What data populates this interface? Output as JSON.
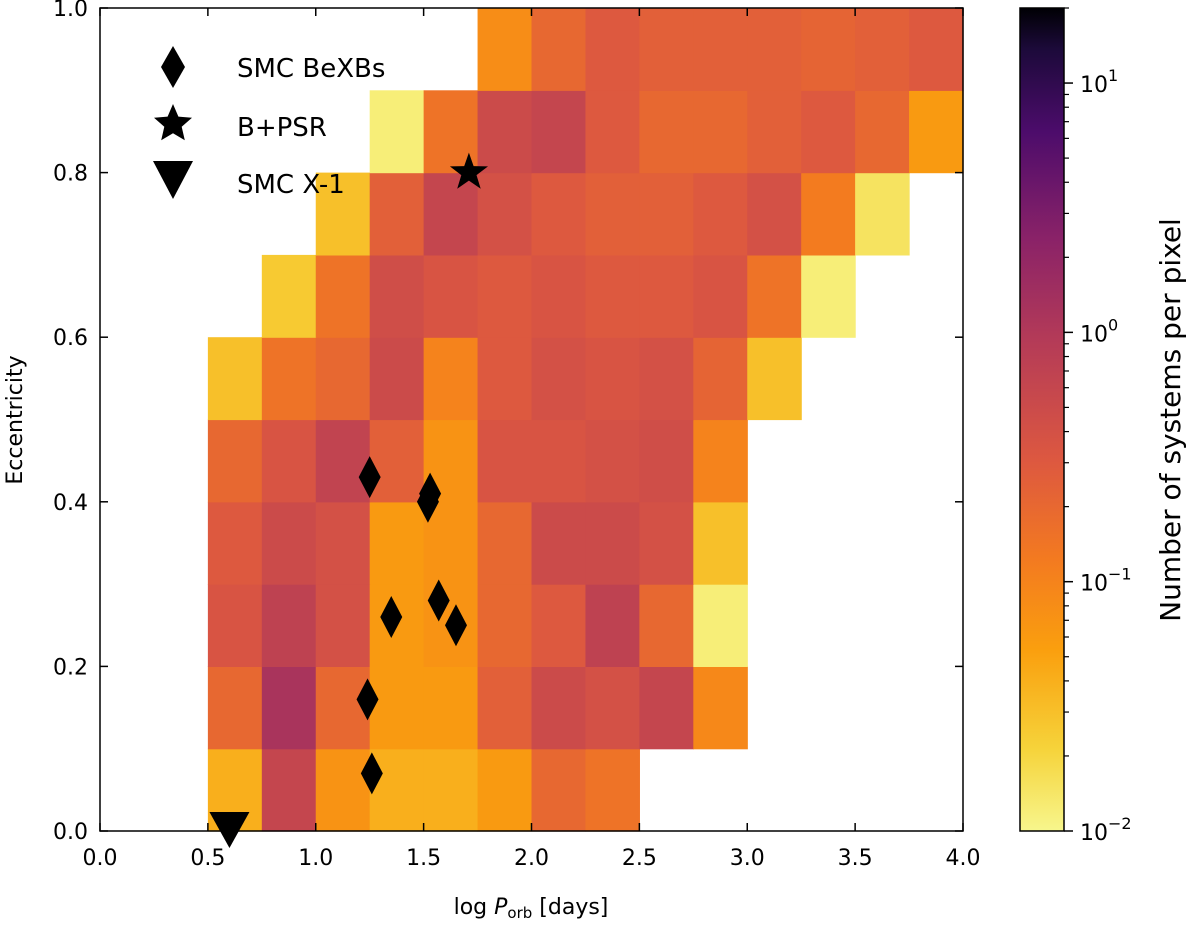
{
  "chart_data": {
    "type": "heatmap",
    "xlabel": {
      "prefix": "log ",
      "var": "P",
      "sub": "orb",
      "suffix": " [days]"
    },
    "ylabel": "Eccentricity",
    "xlim": [
      0.0,
      4.0
    ],
    "ylim": [
      0.0,
      1.0
    ],
    "xticks": [
      "0.0",
      "0.5",
      "1.0",
      "1.5",
      "2.0",
      "2.5",
      "3.0",
      "3.5",
      "4.0"
    ],
    "yticks": [
      "0.0",
      "0.2",
      "0.4",
      "0.6",
      "0.8",
      "1.0"
    ],
    "bin_width_x": 0.25,
    "bin_height_y": 0.0833,
    "x_bin_starts": [
      0.5,
      0.75,
      1.0,
      1.25,
      1.5,
      1.75,
      2.0,
      2.25,
      2.5,
      2.75,
      3.0,
      3.25,
      3.5,
      3.75
    ],
    "grid_rows_bottom_to_top": [
      [
        0.04,
        0.6,
        0.07,
        0.04,
        0.04,
        0.06,
        0.2,
        0.15,
        null,
        null,
        null,
        null,
        null,
        null
      ],
      [
        0.2,
        1.2,
        0.2,
        0.06,
        0.06,
        0.25,
        0.5,
        0.4,
        0.6,
        0.09,
        null,
        null,
        null,
        null
      ],
      [
        0.35,
        0.7,
        0.4,
        0.06,
        0.07,
        0.2,
        0.3,
        0.7,
        0.2,
        0.012,
        null,
        null,
        null,
        null
      ],
      [
        0.3,
        0.5,
        0.4,
        0.06,
        0.07,
        0.2,
        0.5,
        0.5,
        0.4,
        0.03,
        null,
        null,
        null,
        null
      ],
      [
        0.2,
        0.35,
        0.65,
        0.25,
        0.07,
        0.35,
        0.35,
        0.4,
        0.45,
        0.1,
        null,
        null,
        null,
        null
      ],
      [
        0.03,
        0.15,
        0.2,
        0.5,
        0.1,
        0.3,
        0.4,
        0.35,
        0.4,
        0.22,
        0.03,
        null,
        null,
        null
      ],
      [
        null,
        0.025,
        0.15,
        0.45,
        0.35,
        0.3,
        0.35,
        0.3,
        0.3,
        0.35,
        0.15,
        0.012,
        null,
        null
      ],
      [
        null,
        null,
        0.03,
        0.25,
        0.6,
        0.4,
        0.3,
        0.25,
        0.25,
        0.3,
        0.4,
        0.12,
        0.015,
        null
      ],
      [
        null,
        null,
        null,
        0.012,
        0.15,
        0.5,
        0.6,
        0.3,
        0.2,
        0.2,
        0.25,
        0.3,
        0.2,
        0.06
      ],
      [
        null,
        null,
        null,
        null,
        null,
        0.08,
        0.2,
        0.3,
        0.25,
        0.25,
        0.25,
        0.22,
        0.25,
        0.3
      ]
    ],
    "colorbar": {
      "label": "Number of systems per pixel",
      "scale": "log",
      "range": [
        0.01,
        20
      ],
      "ticks": [
        {
          "value": 0.01,
          "base": "10",
          "exp": "−2"
        },
        {
          "value": 0.1,
          "base": "10",
          "exp": "−1"
        },
        {
          "value": 1,
          "base": "10",
          "exp": "0"
        },
        {
          "value": 10,
          "base": "10",
          "exp": "1"
        }
      ],
      "colormap": "inferno_r"
    },
    "series": [
      {
        "name": "SMC BeXBs",
        "marker": "diamond",
        "points": [
          [
            1.25,
            0.43
          ],
          [
            1.52,
            0.4
          ],
          [
            1.53,
            0.41
          ],
          [
            1.35,
            0.26
          ],
          [
            1.57,
            0.28
          ],
          [
            1.65,
            0.25
          ],
          [
            1.24,
            0.16
          ],
          [
            1.26,
            0.07
          ]
        ]
      },
      {
        "name": "B+PSR",
        "marker": "star",
        "points": [
          [
            1.71,
            0.8
          ]
        ]
      },
      {
        "name": "SMC X-1",
        "marker": "triangle-down",
        "points": [
          [
            0.6,
            0.0
          ]
        ]
      }
    ],
    "legend_position": "top-left"
  }
}
